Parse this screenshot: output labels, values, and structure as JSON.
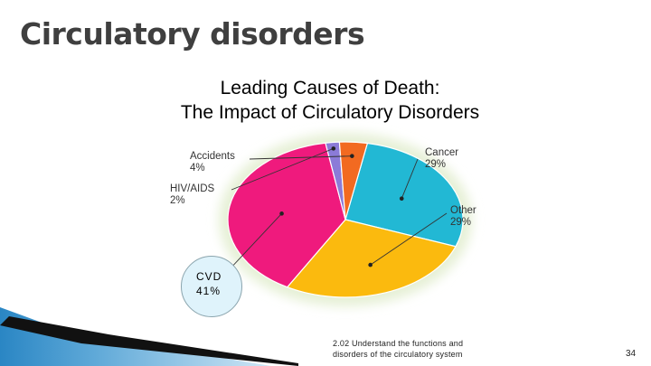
{
  "slide": {
    "title": "Circulatory disorders",
    "footer_line1": "2.02 Understand the functions and",
    "footer_line2": "disorders of the circulatory system",
    "page_number": "34"
  },
  "chart_data": {
    "type": "pie",
    "title_line1": "Leading Causes of Death:",
    "title_line2": "The Impact of Circulatory Disorders",
    "slices": [
      {
        "name": "Cancer",
        "label": "29%",
        "value": 29,
        "color": "#22b8d4"
      },
      {
        "name": "Other",
        "label": "29%",
        "value": 29,
        "color": "#fbba0e"
      },
      {
        "name": "CVD",
        "label": "41%",
        "value": 41,
        "color": "#ef1a7d"
      },
      {
        "name": "HIV/AIDS",
        "label": "2%",
        "value": 2,
        "color": "#8b7bd8"
      },
      {
        "name": "Accidents",
        "label": "4%",
        "value": 4,
        "color": "#f26a21"
      }
    ]
  }
}
